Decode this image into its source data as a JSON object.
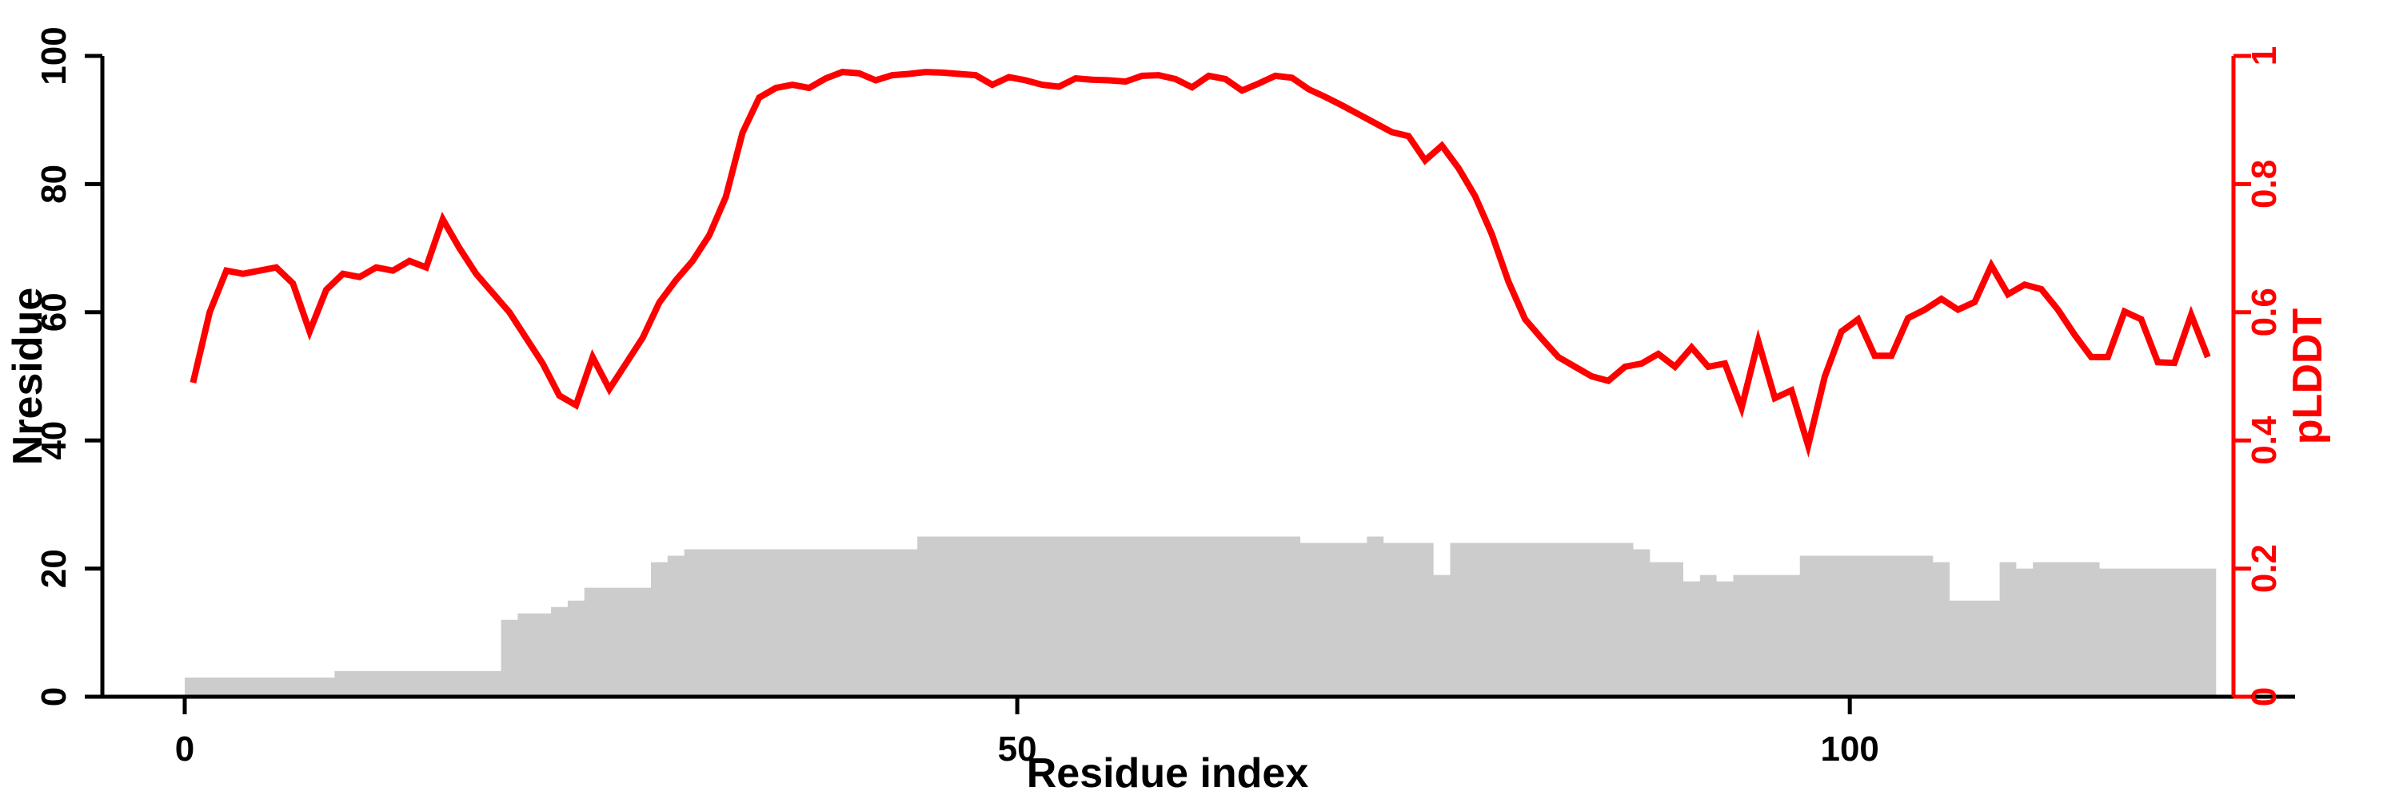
{
  "chart_data": {
    "type": "line",
    "title": "",
    "xlabel": "Residue index",
    "ylabel_left": "Nresidue",
    "ylabel_right": "pLDDT",
    "x_ticks": [
      0,
      50,
      100
    ],
    "y_ticks_left": [
      0,
      20,
      40,
      60,
      80,
      100
    ],
    "y_ticks_right": [
      "0",
      "0.2",
      "0.4",
      "0.6",
      "0.8",
      "1"
    ],
    "y_ticks_right_values": [
      0,
      0.2,
      0.4,
      0.6,
      0.8,
      1
    ],
    "ylim_left": [
      0,
      100
    ],
    "ylim_right": [
      0,
      1
    ],
    "xlim": [
      0,
      123
    ],
    "n_residues": 122,
    "grid": "off",
    "legend": "none",
    "colors": {
      "line": "#ff0000",
      "bars": "#cccccc",
      "axis_left": "#000000",
      "axis_right": "#ff0000"
    },
    "series": [
      {
        "name": "Nresidue",
        "type": "bar",
        "axis": "left",
        "values": [
          3,
          3,
          3,
          3,
          3,
          3,
          3,
          3,
          3,
          4,
          4,
          4,
          4,
          4,
          4,
          4,
          4,
          4,
          4,
          12,
          13,
          13,
          14,
          15,
          17,
          17,
          17,
          17,
          21,
          22,
          23,
          23,
          23,
          23,
          23,
          23,
          23,
          23,
          23,
          23,
          23,
          23,
          23,
          23,
          25,
          25,
          25,
          25,
          25,
          25,
          25,
          25,
          25,
          25,
          25,
          25,
          25,
          25,
          25,
          25,
          25,
          25,
          25,
          25,
          25,
          25,
          25,
          24,
          24,
          24,
          24,
          25,
          24,
          24,
          24,
          19,
          24,
          24,
          24,
          24,
          24,
          24,
          24,
          24,
          24,
          24,
          24,
          23,
          21,
          21,
          18,
          19,
          18,
          19,
          19,
          19,
          19,
          22,
          22,
          22,
          22,
          22,
          22,
          22,
          22,
          21,
          15,
          15,
          15,
          21,
          20,
          21,
          21,
          21,
          21,
          20,
          20,
          20,
          20,
          20,
          20,
          20
        ]
      },
      {
        "name": "pLDDT",
        "type": "line",
        "axis": "right",
        "values": [
          0.49,
          0.6,
          0.665,
          0.66,
          0.665,
          0.67,
          0.645,
          0.57,
          0.635,
          0.66,
          0.655,
          0.67,
          0.665,
          0.68,
          0.67,
          0.745,
          0.7,
          0.66,
          0.63,
          0.6,
          0.56,
          0.52,
          0.47,
          0.455,
          0.53,
          0.48,
          0.52,
          0.56,
          0.615,
          0.65,
          0.68,
          0.72,
          0.78,
          0.88,
          0.935,
          0.95,
          0.955,
          0.95,
          0.965,
          0.975,
          0.973,
          0.962,
          0.97,
          0.972,
          0.975,
          0.974,
          0.972,
          0.97,
          0.955,
          0.967,
          0.962,
          0.955,
          0.952,
          0.965,
          0.963,
          0.962,
          0.96,
          0.969,
          0.97,
          0.964,
          0.951,
          0.969,
          0.964,
          0.946,
          0.957,
          0.969,
          0.966,
          0.948,
          0.936,
          0.923,
          0.909,
          0.895,
          0.881,
          0.875,
          0.837,
          0.86,
          0.825,
          0.781,
          0.722,
          0.648,
          0.589,
          0.559,
          0.53,
          0.515,
          0.5,
          0.493,
          0.515,
          0.52,
          0.535,
          0.515,
          0.545,
          0.515,
          0.52,
          0.451,
          0.555,
          0.466,
          0.478,
          0.392,
          0.5,
          0.57,
          0.589,
          0.532,
          0.532,
          0.591,
          0.604,
          0.621,
          0.604,
          0.616,
          0.673,
          0.628,
          0.643,
          0.636,
          0.604,
          0.565,
          0.53,
          0.53,
          0.601,
          0.589,
          0.522,
          0.521,
          0.596,
          0.53
        ]
      }
    ]
  }
}
